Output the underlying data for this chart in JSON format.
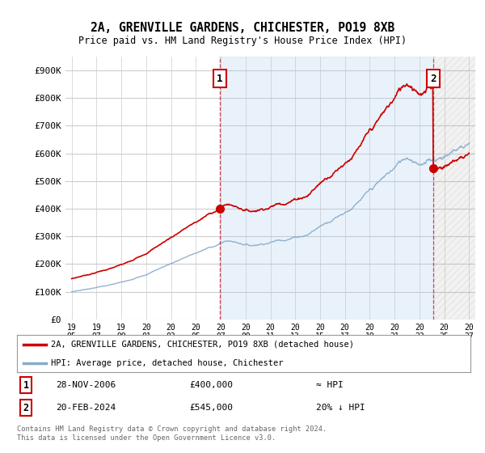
{
  "title": "2A, GRENVILLE GARDENS, CHICHESTER, PO19 8XB",
  "subtitle": "Price paid vs. HM Land Registry's House Price Index (HPI)",
  "ylabel_ticks": [
    "£0",
    "£100K",
    "£200K",
    "£300K",
    "£400K",
    "£500K",
    "£600K",
    "£700K",
    "£800K",
    "£900K"
  ],
  "ytick_vals": [
    0,
    100000,
    200000,
    300000,
    400000,
    500000,
    600000,
    700000,
    800000,
    900000
  ],
  "ylim": [
    0,
    950000
  ],
  "xlim_left": 1994.5,
  "xlim_right": 2027.5,
  "xticks": [
    1995,
    1997,
    1999,
    2001,
    2003,
    2005,
    2007,
    2009,
    2011,
    2013,
    2015,
    2017,
    2019,
    2021,
    2023,
    2025,
    2027
  ],
  "sale1_year": 2006.91,
  "sale1_price": 400000,
  "sale2_year": 2024.13,
  "sale2_price": 545000,
  "red_line_color": "#CC0000",
  "blue_line_color": "#88AACC",
  "vline_color": "#CC0000",
  "sale_marker_color": "#CC0000",
  "bg_color": "#FFFFFF",
  "grid_color": "#CCCCCC",
  "fill_between_color": "#DDEEFF",
  "fill_after_color": "#DDDDDD",
  "legend1": "2A, GRENVILLE GARDENS, CHICHESTER, PO19 8XB (detached house)",
  "legend2": "HPI: Average price, detached house, Chichester",
  "table_row1_num": "1",
  "table_row1_date": "28-NOV-2006",
  "table_row1_price": "£400,000",
  "table_row1_hpi": "≈ HPI",
  "table_row2_num": "2",
  "table_row2_date": "20-FEB-2024",
  "table_row2_price": "£545,000",
  "table_row2_hpi": "20% ↓ HPI",
  "footnote": "Contains HM Land Registry data © Crown copyright and database right 2024.\nThis data is licensed under the Open Government Licence v3.0."
}
